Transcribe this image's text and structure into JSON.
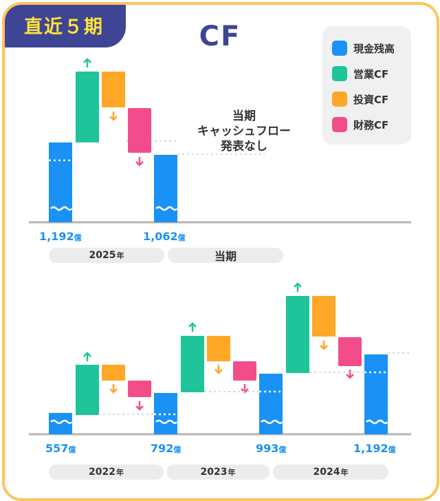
{
  "badge": "直近５期",
  "title": "CF",
  "legend": [
    {
      "label": "現金残高",
      "color": "#1a91f5"
    },
    {
      "label": "営業CF",
      "color": "#20c49a"
    },
    {
      "label": "投資CF",
      "color": "#ffa726"
    },
    {
      "label": "財務CF",
      "color": "#f24d8a"
    }
  ],
  "note": [
    "当期",
    "キャッシュフロー",
    "発表なし"
  ],
  "unit": "億",
  "chart_data": [
    {
      "type": "waterfall",
      "title": "CF",
      "periods": [
        {
          "label": "2025年",
          "start_balance": "1,192",
          "end_balance": "1,062",
          "operating": "up",
          "investing": "down",
          "financing": "down"
        },
        {
          "label": "当期",
          "start_balance": "1,062",
          "cash_flow": "当期 キャッシュフロー 発表なし"
        }
      ]
    },
    {
      "type": "waterfall",
      "periods": [
        {
          "label": "2022年",
          "start_balance": "557",
          "end_balance": "792",
          "operating": "up",
          "investing": "down",
          "financing": "down"
        },
        {
          "label": "2023年",
          "start_balance": "792",
          "end_balance": "993",
          "operating": "up",
          "investing": "down",
          "financing": "down"
        },
        {
          "label": "2024年",
          "start_balance": "993",
          "end_balance": "1,192",
          "operating": "up",
          "investing": "down",
          "financing": "down"
        }
      ]
    }
  ],
  "top_values": [
    "1,192",
    "1,062"
  ],
  "bottom_values": [
    "557",
    "792",
    "993",
    "1,192"
  ],
  "top_periods": [
    "2025",
    "当期"
  ],
  "bottom_periods": [
    "2022",
    "2023",
    "2024"
  ],
  "year_suffix": "年"
}
